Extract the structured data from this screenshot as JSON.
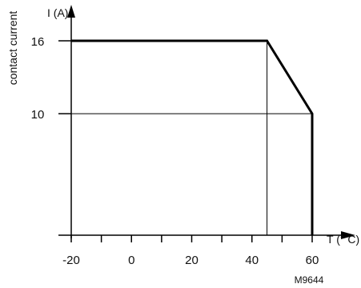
{
  "chart_data": {
    "type": "line",
    "ylabel": "I (A)",
    "ylabel_side": "contact current",
    "xlabel": "T (° C)",
    "xlim": [
      -20,
      60
    ],
    "ylim": [
      0,
      16
    ],
    "x_ticks": [
      -20,
      0,
      20,
      40,
      60
    ],
    "x_minor_ticks": [
      -10,
      10,
      30,
      50
    ],
    "y_ticks": [
      10,
      16
    ],
    "series": [
      {
        "x": [
          -20,
          45,
          60,
          60
        ],
        "y": [
          16,
          16,
          10,
          0
        ]
      }
    ],
    "guides": [
      {
        "from": [
          -20,
          10
        ],
        "to": [
          60,
          10
        ]
      },
      {
        "from": [
          45,
          0
        ],
        "to": [
          45,
          16
        ]
      }
    ],
    "code": "M9644"
  }
}
